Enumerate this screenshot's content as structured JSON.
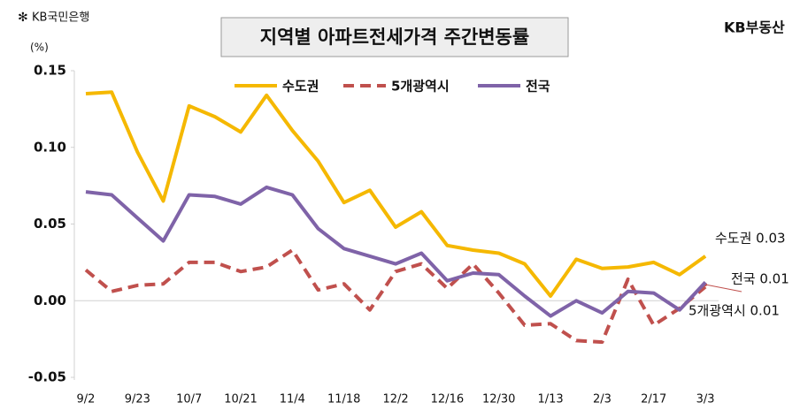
{
  "chart_data": {
    "type": "line",
    "brand_left": "KB국민은행",
    "brand_right": "KB부동산",
    "title": "지역별 아파트전세가격 주간변동률",
    "y_unit": "(%)",
    "categories": [
      "9/2",
      null,
      "9/23",
      null,
      "10/7",
      null,
      "10/21",
      null,
      "11/4",
      null,
      "11/18",
      null,
      "12/2",
      null,
      "12/16",
      null,
      "12/30",
      null,
      "1/13",
      null,
      "2/3",
      null,
      "2/17",
      null,
      "3/3"
    ],
    "series": [
      {
        "name": "수도권",
        "color": "#f5b800",
        "dashed": false,
        "values": [
          0.135,
          0.136,
          0.097,
          0.065,
          0.127,
          0.12,
          0.11,
          0.134,
          0.111,
          0.091,
          0.064,
          0.072,
          0.048,
          0.058,
          0.036,
          0.033,
          0.031,
          0.024,
          0.003,
          0.027,
          0.021,
          0.022,
          0.025,
          0.017,
          0.029
        ]
      },
      {
        "name": "5개광역시",
        "color": "#c0504d",
        "dashed": true,
        "values": [
          0.02,
          0.006,
          0.01,
          0.011,
          0.025,
          0.025,
          0.019,
          0.022,
          0.033,
          0.007,
          0.011,
          -0.006,
          0.019,
          0.024,
          0.008,
          0.024,
          0.005,
          -0.016,
          -0.015,
          -0.026,
          -0.027,
          0.014,
          -0.016,
          -0.005,
          0.009
        ]
      },
      {
        "name": "전국",
        "color": "#7f63a8",
        "dashed": false,
        "values": [
          0.071,
          0.069,
          0.054,
          0.039,
          0.069,
          0.068,
          0.063,
          0.074,
          0.069,
          0.047,
          0.034,
          0.029,
          0.024,
          0.031,
          0.013,
          0.018,
          0.017,
          0.003,
          -0.01,
          0.0,
          -0.008,
          0.006,
          0.005,
          -0.006,
          0.012
        ]
      }
    ],
    "annotations": [
      "수도권 0.03",
      "전국 0.01",
      "5개광역시 0.01"
    ],
    "ylim": [
      -0.05,
      0.15
    ],
    "yticks": [
      {
        "value": -0.05,
        "label": "-0.05"
      },
      {
        "value": 0,
        "label": "0.00"
      },
      0.05,
      {
        "value": 0.1,
        "label": "0.10"
      },
      0.15
    ]
  }
}
